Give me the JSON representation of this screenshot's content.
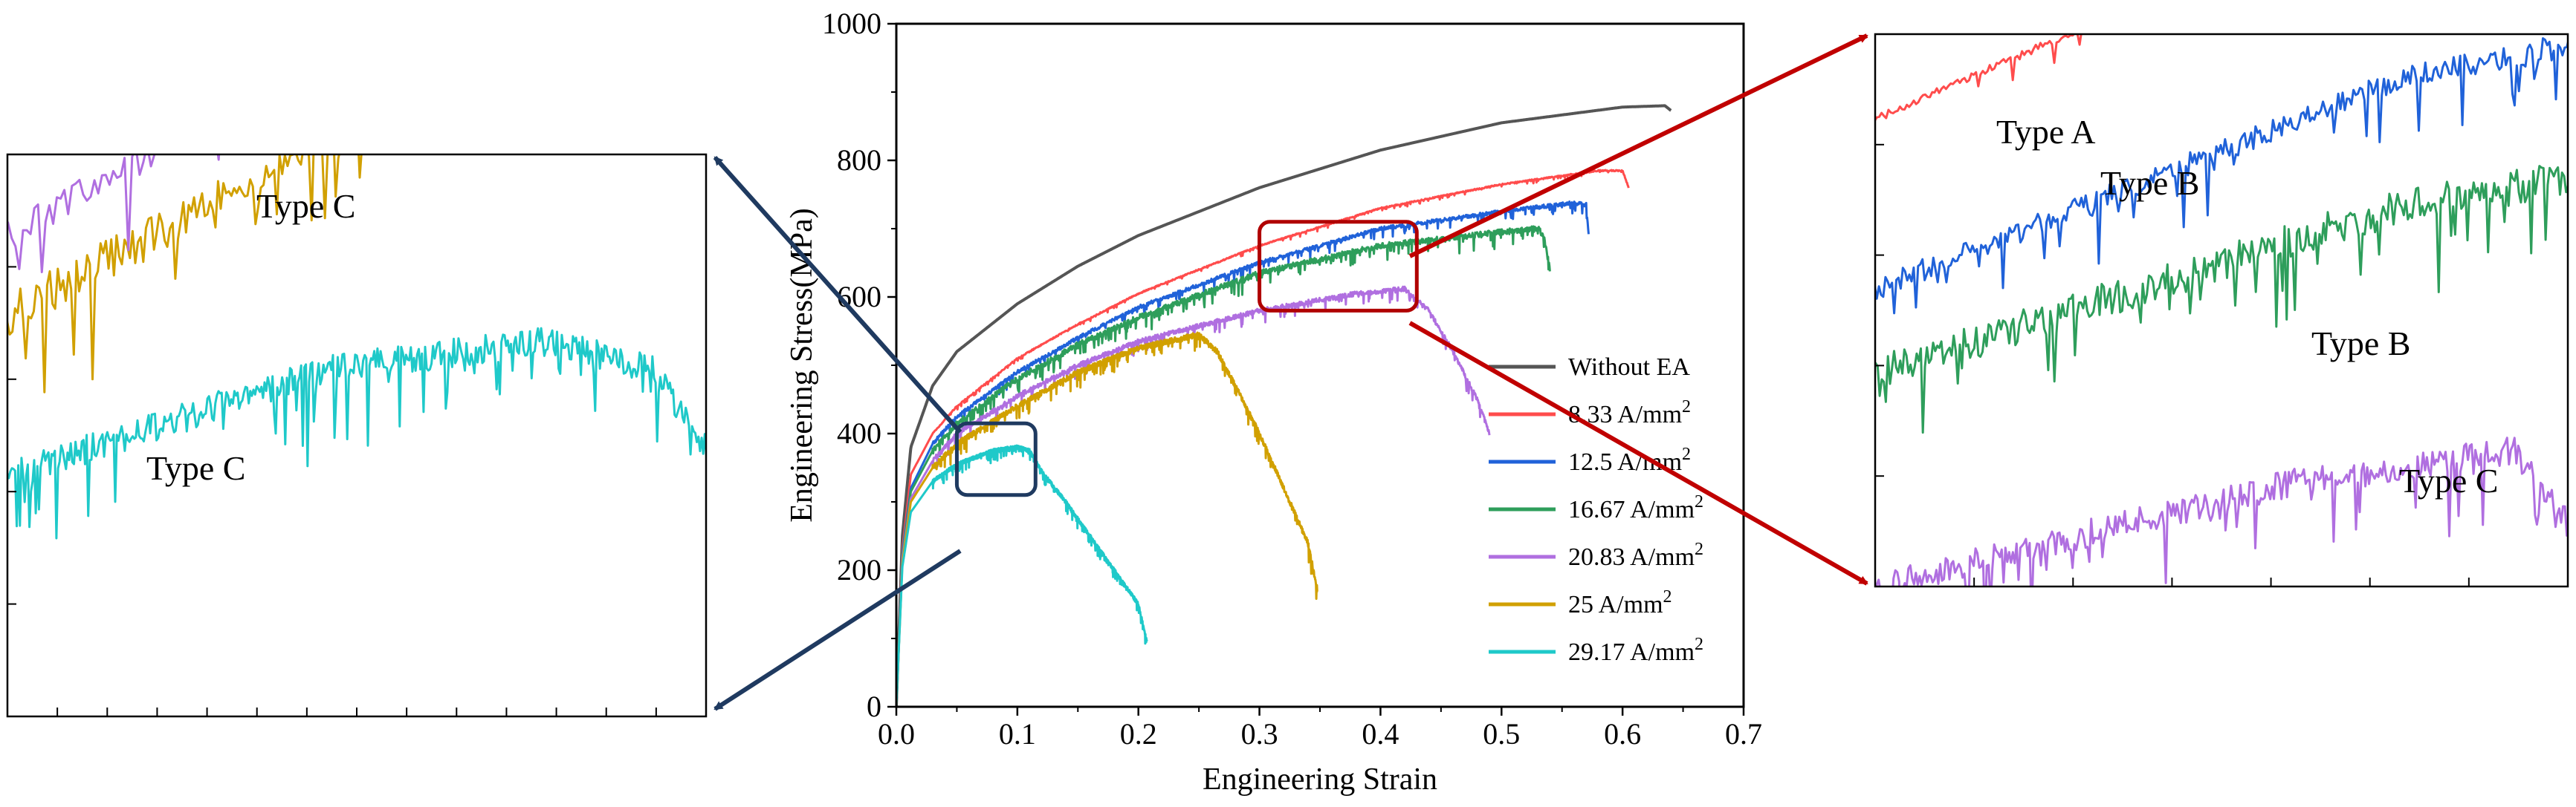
{
  "chart_data": [
    {
      "id": "main",
      "type": "line",
      "xlabel": "Engineering Strain",
      "ylabel": "Engineering Stress(MPa)",
      "xlim": [
        0.0,
        0.7
      ],
      "ylim": [
        0,
        1000
      ],
      "xticks": [
        "0.0",
        "0.1",
        "0.2",
        "0.3",
        "0.4",
        "0.5",
        "0.6",
        "0.7"
      ],
      "yticks": [
        "0",
        "200",
        "400",
        "600",
        "800",
        "1000"
      ],
      "legend_position": "lower-right inside",
      "grid": false,
      "series": [
        {
          "name": "Without EA",
          "legend_main": "Without EA",
          "legend_sup": "",
          "color": "#555555",
          "points": [
            [
              0,
              0
            ],
            [
              0.005,
              250
            ],
            [
              0.012,
              380
            ],
            [
              0.03,
              470
            ],
            [
              0.05,
              520
            ],
            [
              0.1,
              590
            ],
            [
              0.15,
              645
            ],
            [
              0.2,
              690
            ],
            [
              0.3,
              760
            ],
            [
              0.4,
              815
            ],
            [
              0.5,
              855
            ],
            [
              0.6,
              878
            ],
            [
              0.635,
              880
            ],
            [
              0.64,
              873
            ]
          ],
          "noise": 0
        },
        {
          "name": "8.33 A/mm2",
          "legend_main": "8.33 A/mm",
          "legend_sup": "2",
          "color": "#ff4c4c",
          "points": [
            [
              0,
              0
            ],
            [
              0.005,
              230
            ],
            [
              0.012,
              340
            ],
            [
              0.03,
              400
            ],
            [
              0.05,
              440
            ],
            [
              0.1,
              510
            ],
            [
              0.15,
              560
            ],
            [
              0.2,
              605
            ],
            [
              0.3,
              675
            ],
            [
              0.4,
              730
            ],
            [
              0.5,
              765
            ],
            [
              0.58,
              785
            ],
            [
              0.6,
              785
            ],
            [
              0.605,
              760
            ]
          ],
          "noise": 3
        },
        {
          "name": "12.5 A/mm2",
          "legend_main": "12.5 A/mm",
          "legend_sup": "2",
          "color": "#2062d9",
          "points": [
            [
              0,
              0
            ],
            [
              0.005,
              225
            ],
            [
              0.012,
              320
            ],
            [
              0.03,
              385
            ],
            [
              0.05,
              425
            ],
            [
              0.1,
              490
            ],
            [
              0.15,
              540
            ],
            [
              0.2,
              585
            ],
            [
              0.3,
              650
            ],
            [
              0.4,
              700
            ],
            [
              0.5,
              725
            ],
            [
              0.56,
              738
            ],
            [
              0.57,
              735
            ],
            [
              0.572,
              690
            ]
          ],
          "noise": 9
        },
        {
          "name": "16.67 A/mm2",
          "legend_main": "16.67 A/mm",
          "legend_sup": "2",
          "color": "#2e9e5b",
          "points": [
            [
              0,
              0
            ],
            [
              0.005,
              220
            ],
            [
              0.012,
              315
            ],
            [
              0.03,
              375
            ],
            [
              0.05,
              415
            ],
            [
              0.1,
              480
            ],
            [
              0.15,
              530
            ],
            [
              0.2,
              570
            ],
            [
              0.3,
              635
            ],
            [
              0.4,
              675
            ],
            [
              0.5,
              695
            ],
            [
              0.53,
              700
            ],
            [
              0.535,
              690
            ],
            [
              0.54,
              640
            ]
          ],
          "noise": 14
        },
        {
          "name": "20.83 A/mm2",
          "legend_main": "20.83 A/mm",
          "legend_sup": "2",
          "color": "#b06fe0",
          "points": [
            [
              0,
              0
            ],
            [
              0.005,
              215
            ],
            [
              0.012,
              305
            ],
            [
              0.03,
              360
            ],
            [
              0.05,
              400
            ],
            [
              0.1,
              455
            ],
            [
              0.15,
              500
            ],
            [
              0.2,
              535
            ],
            [
              0.3,
              580
            ],
            [
              0.38,
              605
            ],
            [
              0.42,
              612
            ],
            [
              0.44,
              580
            ],
            [
              0.46,
              520
            ],
            [
              0.48,
              450
            ],
            [
              0.49,
              400
            ]
          ],
          "noise": 11
        },
        {
          "name": "25 A/mm2",
          "legend_main": "25 A/mm",
          "legend_sup": "2",
          "color": "#d1a000",
          "points": [
            [
              0,
              0
            ],
            [
              0.005,
              210
            ],
            [
              0.012,
              300
            ],
            [
              0.03,
              350
            ],
            [
              0.05,
              385
            ],
            [
              0.1,
              440
            ],
            [
              0.15,
              490
            ],
            [
              0.2,
              525
            ],
            [
              0.25,
              545
            ],
            [
              0.265,
              520
            ],
            [
              0.28,
              470
            ],
            [
              0.3,
              400
            ],
            [
              0.32,
              320
            ],
            [
              0.34,
              240
            ],
            [
              0.348,
              170
            ]
          ],
          "noise": 13
        },
        {
          "name": "29.17 A/mm2",
          "legend_main": "29.17 A/mm",
          "legend_sup": "2",
          "color": "#1fc9c9",
          "points": [
            [
              0,
              0
            ],
            [
              0.005,
              205
            ],
            [
              0.012,
              285
            ],
            [
              0.03,
              330
            ],
            [
              0.05,
              355
            ],
            [
              0.08,
              375
            ],
            [
              0.1,
              380
            ],
            [
              0.11,
              375
            ],
            [
              0.12,
              345
            ],
            [
              0.14,
              300
            ],
            [
              0.16,
              250
            ],
            [
              0.18,
              200
            ],
            [
              0.2,
              150
            ],
            [
              0.207,
              95
            ]
          ],
          "noise": 9
        }
      ]
    },
    {
      "id": "zoom-left",
      "type": "line",
      "source_box": {
        "x": [
          0.05,
          0.115
        ],
        "y": [
          310,
          415
        ]
      },
      "xlabel": "",
      "ylabel": "",
      "annotations": [
        "Type C",
        "Type C"
      ],
      "series_shown": [
        "25 A/mm2",
        "29.17 A/mm2",
        "20.83 A/mm2"
      ]
    },
    {
      "id": "zoom-right",
      "type": "line",
      "source_box": {
        "x": [
          0.3,
          0.43
        ],
        "y": [
          580,
          710
        ]
      },
      "xlabel": "",
      "ylabel": "",
      "annotations": [
        "Type A",
        "Type B",
        "Type B",
        "Type C"
      ],
      "series_shown": [
        "8.33 A/mm2",
        "12.5 A/mm2",
        "16.67 A/mm2",
        "20.83 A/mm2"
      ]
    }
  ],
  "colors": {
    "arrow_navy": "#1f3a60",
    "arrow_red": "#c00000",
    "box_navy": "#1f3a60",
    "box_red": "#b00000"
  }
}
